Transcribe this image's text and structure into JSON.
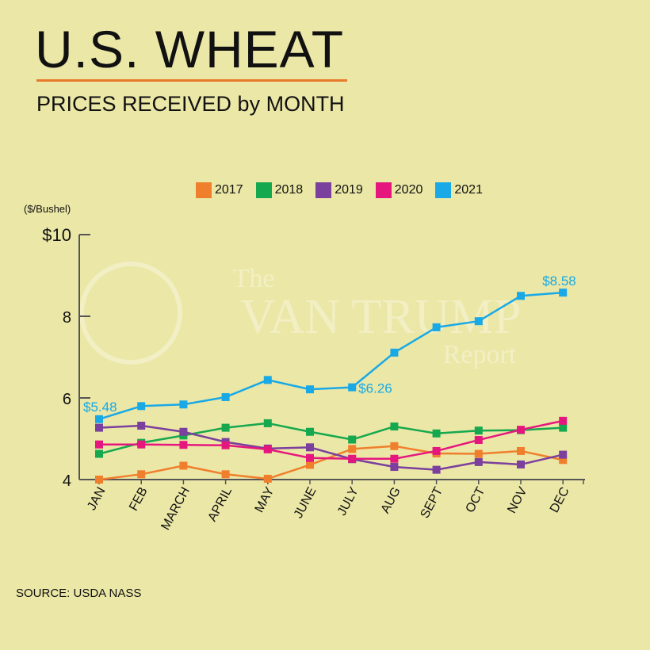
{
  "header": {
    "title": "U.S. WHEAT",
    "subtitle": "PRICES RECEIVED by MONTH"
  },
  "source": "SOURCE: USDA NASS",
  "watermark": {
    "line1": "The",
    "line2": "VAN TRUMP",
    "line3": "Report"
  },
  "colors": {
    "background": "#ebe7a6",
    "title_rule": "#e87a2a",
    "axis": "#555555"
  },
  "chart_data": {
    "type": "line",
    "ylabel": "($/Bushel)",
    "ylim": [
      4,
      10
    ],
    "yticks": [
      {
        "value": 10,
        "label": "$10"
      },
      {
        "value": 8,
        "label": "8"
      },
      {
        "value": 6,
        "label": "6"
      },
      {
        "value": 4,
        "label": "4"
      }
    ],
    "categories": [
      "JAN",
      "FEB",
      "MARCH",
      "APRIL",
      "MAY",
      "JUNE",
      "JULY",
      "AUG",
      "SEPT",
      "OCT",
      "NOV",
      "DEC"
    ],
    "legend_position": "top",
    "grid": false,
    "series": [
      {
        "name": "2017",
        "color": "#f07f2d",
        "values": [
          4.0,
          4.13,
          4.34,
          4.13,
          4.02,
          4.36,
          4.75,
          4.82,
          4.64,
          4.63,
          4.7,
          4.48
        ]
      },
      {
        "name": "2018",
        "color": "#16a84e",
        "values": [
          4.63,
          4.9,
          5.08,
          5.27,
          5.38,
          5.17,
          4.98,
          5.3,
          5.13,
          5.2,
          5.21,
          5.27
        ]
      },
      {
        "name": "2019",
        "color": "#7b3f9e",
        "values": [
          5.27,
          5.32,
          5.17,
          4.92,
          4.76,
          4.79,
          4.5,
          4.31,
          4.24,
          4.43,
          4.37,
          4.61
        ]
      },
      {
        "name": "2020",
        "color": "#e5177e",
        "values": [
          4.86,
          4.86,
          4.85,
          4.84,
          4.74,
          4.53,
          4.51,
          4.51,
          4.7,
          4.97,
          5.22,
          5.44
        ]
      },
      {
        "name": "2021",
        "color": "#19a9e6",
        "values": [
          5.48,
          5.8,
          5.84,
          6.02,
          6.44,
          6.21,
          6.26,
          7.11,
          7.73,
          7.88,
          8.5,
          8.58
        ]
      }
    ],
    "annotations": [
      {
        "series": "2021",
        "index": 0,
        "text": "$5.48"
      },
      {
        "series": "2021",
        "index": 6,
        "text": "$6.26"
      },
      {
        "series": "2021",
        "index": 11,
        "text": "$8.58"
      }
    ]
  }
}
